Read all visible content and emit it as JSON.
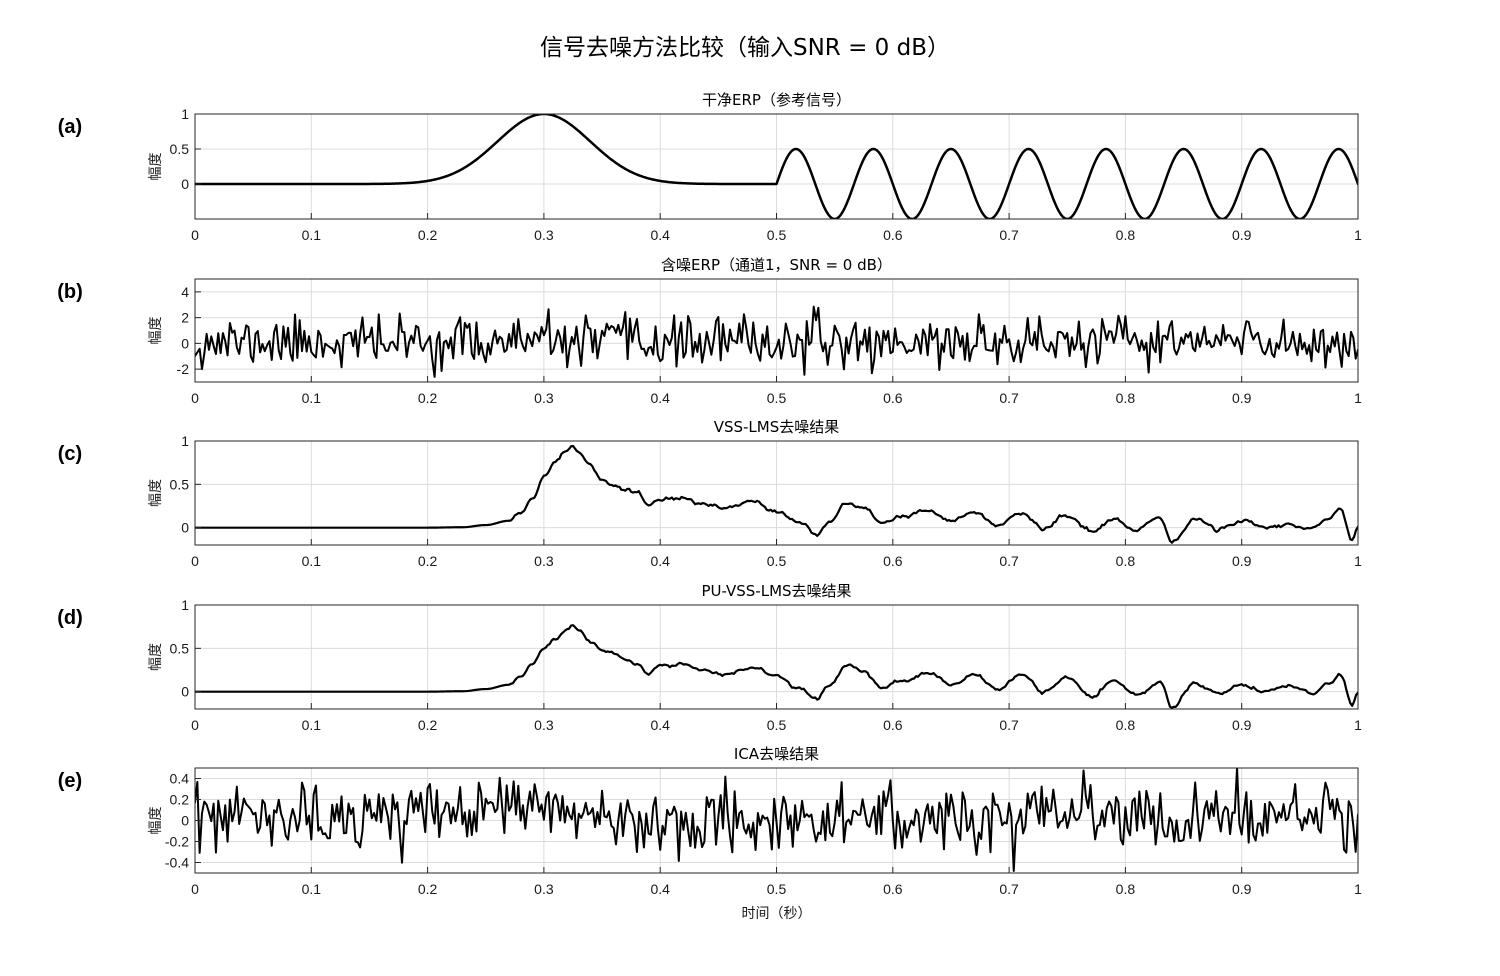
{
  "figure": {
    "title": "信号去噪方法比较（输入SNR = 0 dB）",
    "xlabel": "时间（秒）"
  },
  "chart_data": [
    {
      "type": "line",
      "letter": "(a)",
      "title": "干净ERP（参考信号）",
      "ylabel": "幅度",
      "xlim": [
        0,
        1
      ],
      "ylim": [
        -0.5,
        1
      ],
      "xticks": [
        "0",
        "0.1",
        "0.2",
        "0.3",
        "0.4",
        "0.5",
        "0.6",
        "0.7",
        "0.8",
        "0.9",
        "1"
      ],
      "yticks": [
        {
          "value": 1,
          "label": "1"
        },
        {
          "value": 0.5,
          "label": "0.5"
        },
        {
          "value": 0,
          "label": "0"
        }
      ],
      "grid": true,
      "line_color": "#000000",
      "series": [
        {
          "kind": "function",
          "description_model": "gaussian pulse (peak 1 at t=0.3) followed by 0.5-amplitude sinusoid after t=0.5",
          "gaussian": {
            "amplitude": 1.0,
            "center": 0.3,
            "sigma": 0.04
          },
          "sine": {
            "start": 0.5,
            "amplitude": 0.5,
            "frequency_hz": 15
          }
        }
      ]
    },
    {
      "type": "line",
      "letter": "(b)",
      "title": "含噪ERP（通道1，SNR = 0 dB）",
      "ylabel": "幅度",
      "xlim": [
        0,
        1
      ],
      "ylim": [
        -3,
        5
      ],
      "xticks": [
        "0",
        "0.1",
        "0.2",
        "0.3",
        "0.4",
        "0.5",
        "0.6",
        "0.7",
        "0.8",
        "0.9",
        "1"
      ],
      "yticks": [
        {
          "value": 4,
          "label": "4"
        },
        {
          "value": 2,
          "label": "2"
        },
        {
          "value": 0,
          "label": "0"
        },
        {
          "value": -2,
          "label": "-2"
        }
      ],
      "grid": true,
      "line_color": "#000000",
      "series": [
        {
          "kind": "noise",
          "samples": 500,
          "seed": 11,
          "mean": 0.1,
          "std": 0.95,
          "clip": [
            -2.9,
            3.8
          ]
        }
      ]
    },
    {
      "type": "line",
      "letter": "(c)",
      "title": "VSS-LMS去噪结果",
      "ylabel": "幅度",
      "xlim": [
        0,
        1
      ],
      "ylim": [
        -0.2,
        1
      ],
      "xticks": [
        "0",
        "0.1",
        "0.2",
        "0.3",
        "0.4",
        "0.5",
        "0.6",
        "0.7",
        "0.8",
        "0.9",
        "1"
      ],
      "yticks": [
        {
          "value": 1,
          "label": "1"
        },
        {
          "value": 0.5,
          "label": "0.5"
        },
        {
          "value": 0,
          "label": "0"
        }
      ],
      "grid": true,
      "line_color": "#000000",
      "series": [
        {
          "kind": "keypoints",
          "seed": 23,
          "jitter": 0.025,
          "points": [
            [
              0,
              0
            ],
            [
              0.2,
              0
            ],
            [
              0.23,
              0.005
            ],
            [
              0.25,
              0.03
            ],
            [
              0.27,
              0.08
            ],
            [
              0.28,
              0.17
            ],
            [
              0.29,
              0.35
            ],
            [
              0.3,
              0.6
            ],
            [
              0.31,
              0.78
            ],
            [
              0.32,
              0.9
            ],
            [
              0.325,
              0.95
            ],
            [
              0.33,
              0.88
            ],
            [
              0.34,
              0.72
            ],
            [
              0.35,
              0.55
            ],
            [
              0.36,
              0.48
            ],
            [
              0.37,
              0.42
            ],
            [
              0.38,
              0.38
            ],
            [
              0.39,
              0.25
            ],
            [
              0.4,
              0.33
            ],
            [
              0.42,
              0.35
            ],
            [
              0.44,
              0.25
            ],
            [
              0.46,
              0.22
            ],
            [
              0.48,
              0.3
            ],
            [
              0.5,
              0.2
            ],
            [
              0.52,
              0.05
            ],
            [
              0.535,
              -0.08
            ],
            [
              0.545,
              0.05
            ],
            [
              0.56,
              0.27
            ],
            [
              0.575,
              0.22
            ],
            [
              0.59,
              0.05
            ],
            [
              0.61,
              0.12
            ],
            [
              0.63,
              0.2
            ],
            [
              0.65,
              0.08
            ],
            [
              0.67,
              0.18
            ],
            [
              0.69,
              0.02
            ],
            [
              0.71,
              0.18
            ],
            [
              0.73,
              0.0
            ],
            [
              0.75,
              0.14
            ],
            [
              0.77,
              -0.05
            ],
            [
              0.79,
              0.1
            ],
            [
              0.81,
              -0.03
            ],
            [
              0.83,
              0.12
            ],
            [
              0.84,
              -0.18
            ],
            [
              0.86,
              0.1
            ],
            [
              0.88,
              -0.02
            ],
            [
              0.9,
              0.08
            ],
            [
              0.92,
              0.0
            ],
            [
              0.94,
              0.05
            ],
            [
              0.96,
              -0.02
            ],
            [
              0.975,
              0.1
            ],
            [
              0.985,
              0.2
            ],
            [
              0.995,
              -0.15
            ],
            [
              1.0,
              0.0
            ]
          ]
        }
      ]
    },
    {
      "type": "line",
      "letter": "(d)",
      "title": "PU-VSS-LMS去噪结果",
      "ylabel": "幅度",
      "xlim": [
        0,
        1
      ],
      "ylim": [
        -0.2,
        1
      ],
      "xticks": [
        "0",
        "0.1",
        "0.2",
        "0.3",
        "0.4",
        "0.5",
        "0.6",
        "0.7",
        "0.8",
        "0.9",
        "1"
      ],
      "yticks": [
        {
          "value": 1,
          "label": "1"
        },
        {
          "value": 0.5,
          "label": "0.5"
        },
        {
          "value": 0,
          "label": "0"
        }
      ],
      "grid": true,
      "line_color": "#000000",
      "series": [
        {
          "kind": "keypoints",
          "seed": 37,
          "jitter": 0.022,
          "points": [
            [
              0,
              0
            ],
            [
              0.2,
              0
            ],
            [
              0.23,
              0.005
            ],
            [
              0.25,
              0.03
            ],
            [
              0.27,
              0.08
            ],
            [
              0.28,
              0.17
            ],
            [
              0.29,
              0.32
            ],
            [
              0.3,
              0.5
            ],
            [
              0.31,
              0.62
            ],
            [
              0.32,
              0.72
            ],
            [
              0.325,
              0.76
            ],
            [
              0.33,
              0.7
            ],
            [
              0.34,
              0.58
            ],
            [
              0.35,
              0.48
            ],
            [
              0.36,
              0.42
            ],
            [
              0.37,
              0.38
            ],
            [
              0.38,
              0.32
            ],
            [
              0.39,
              0.2
            ],
            [
              0.4,
              0.3
            ],
            [
              0.42,
              0.32
            ],
            [
              0.44,
              0.24
            ],
            [
              0.46,
              0.2
            ],
            [
              0.48,
              0.28
            ],
            [
              0.5,
              0.18
            ],
            [
              0.52,
              0.05
            ],
            [
              0.535,
              -0.08
            ],
            [
              0.545,
              0.06
            ],
            [
              0.56,
              0.3
            ],
            [
              0.575,
              0.24
            ],
            [
              0.59,
              0.05
            ],
            [
              0.61,
              0.12
            ],
            [
              0.63,
              0.22
            ],
            [
              0.65,
              0.08
            ],
            [
              0.67,
              0.2
            ],
            [
              0.69,
              0.02
            ],
            [
              0.71,
              0.2
            ],
            [
              0.73,
              0.0
            ],
            [
              0.75,
              0.16
            ],
            [
              0.77,
              -0.05
            ],
            [
              0.79,
              0.12
            ],
            [
              0.81,
              -0.03
            ],
            [
              0.83,
              0.12
            ],
            [
              0.84,
              -0.18
            ],
            [
              0.86,
              0.1
            ],
            [
              0.88,
              -0.02
            ],
            [
              0.9,
              0.08
            ],
            [
              0.92,
              0.0
            ],
            [
              0.94,
              0.06
            ],
            [
              0.96,
              -0.02
            ],
            [
              0.975,
              0.1
            ],
            [
              0.985,
              0.2
            ],
            [
              0.995,
              -0.15
            ],
            [
              1.0,
              0.0
            ]
          ]
        }
      ]
    },
    {
      "type": "line",
      "letter": "(e)",
      "title": "ICA去噪结果",
      "ylabel": "幅度",
      "xlim": [
        0,
        1
      ],
      "ylim": [
        -0.5,
        0.5
      ],
      "xticks": [
        "0",
        "0.1",
        "0.2",
        "0.3",
        "0.4",
        "0.5",
        "0.6",
        "0.7",
        "0.8",
        "0.9",
        "1"
      ],
      "yticks": [
        {
          "value": 0.4,
          "label": "0.4"
        },
        {
          "value": 0.2,
          "label": "0.2"
        },
        {
          "value": 0,
          "label": "0"
        },
        {
          "value": -0.2,
          "label": "-0.2"
        },
        {
          "value": -0.4,
          "label": "-0.4"
        }
      ],
      "grid": true,
      "line_color": "#000000",
      "series": [
        {
          "kind": "noise",
          "samples": 500,
          "seed": 53,
          "mean": 0.02,
          "std": 0.15,
          "clip": [
            -0.48,
            0.5
          ],
          "bump": {
            "center": 0.27,
            "width": 0.04,
            "amplitude": 0.12
          }
        }
      ]
    }
  ]
}
